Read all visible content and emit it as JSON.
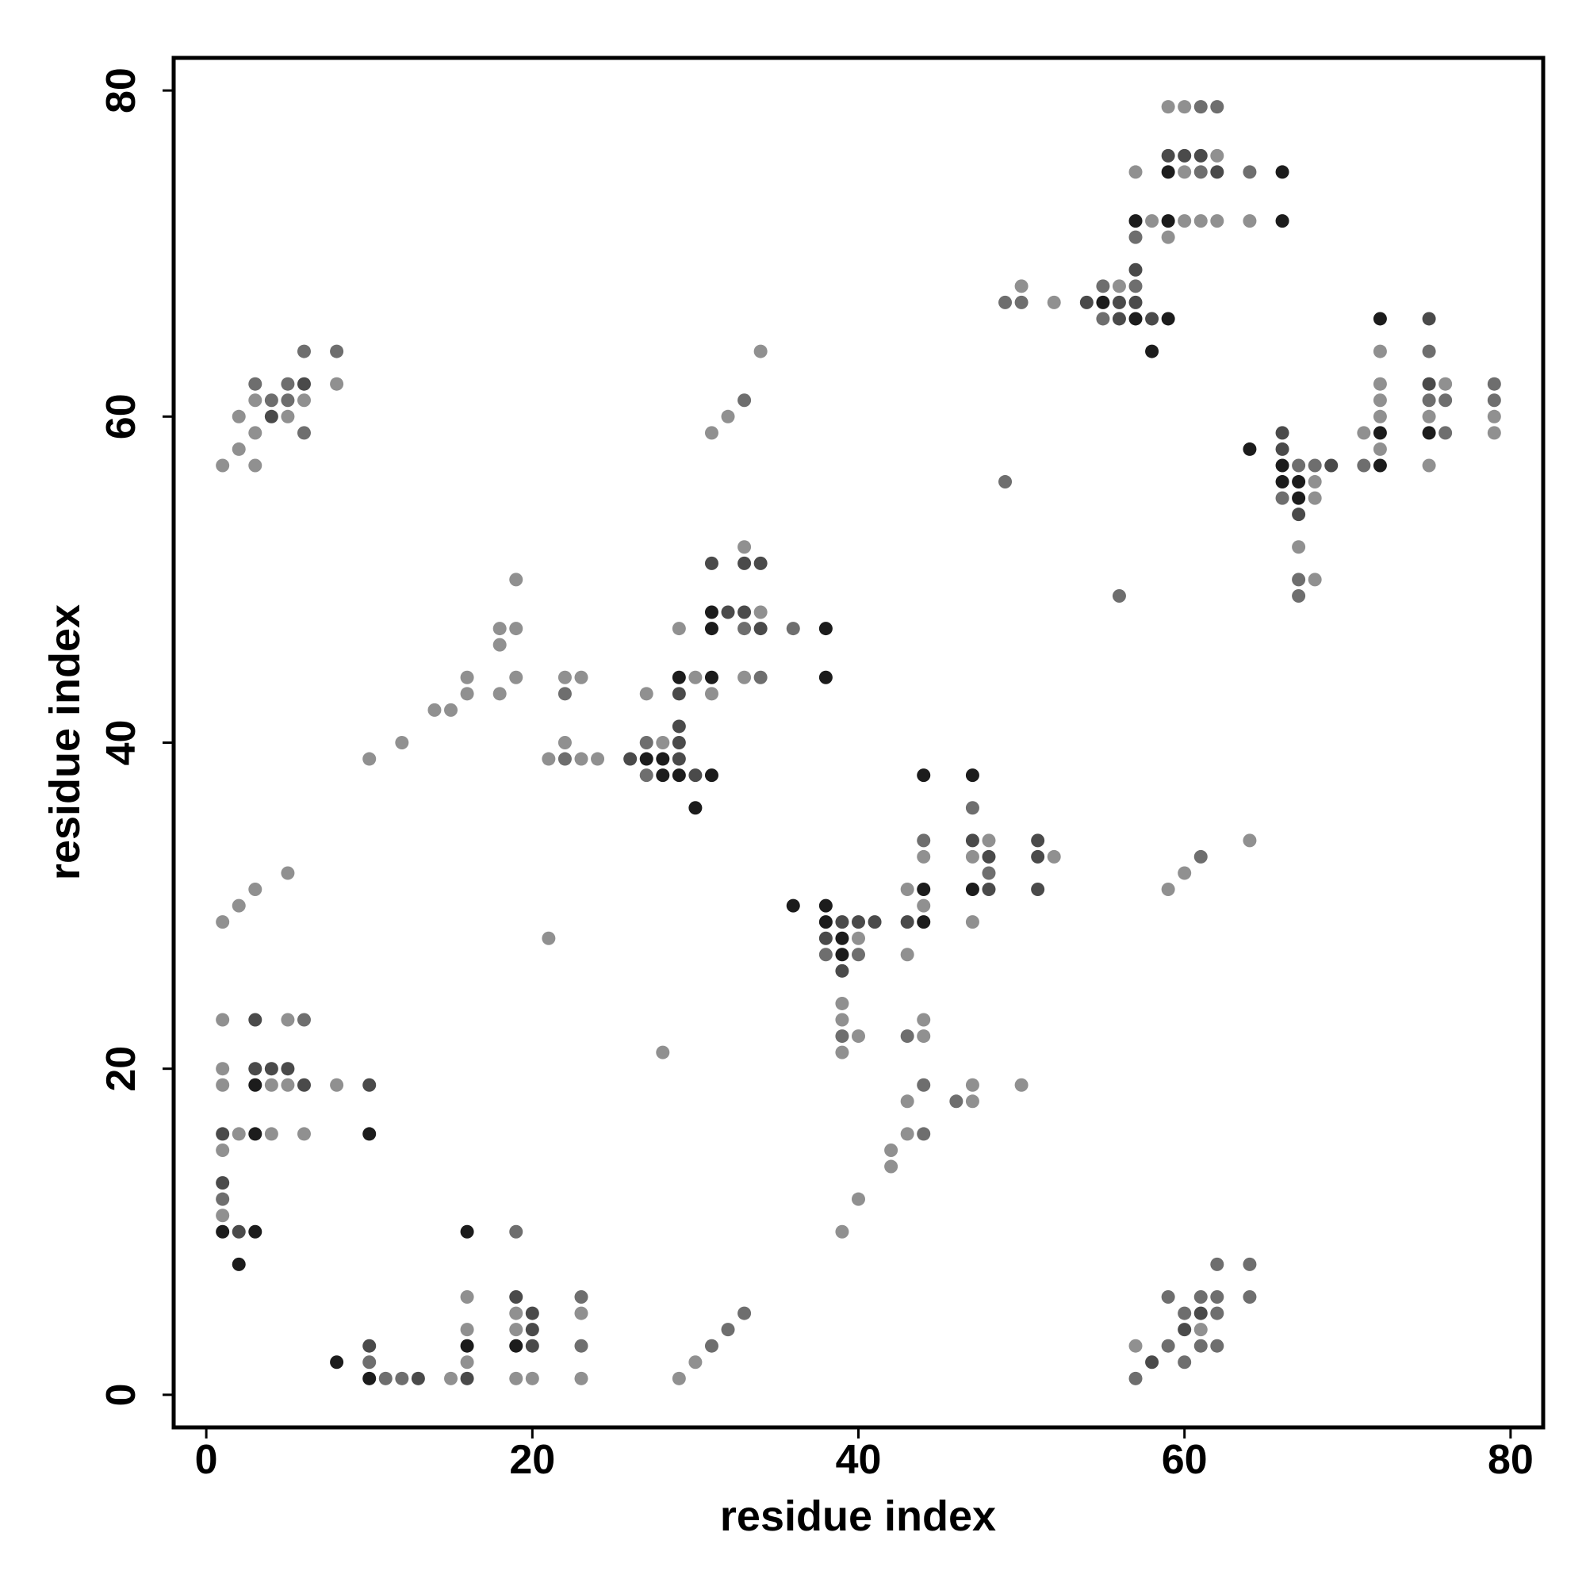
{
  "chart_data": {
    "type": "scatter",
    "x_label": "residue index",
    "y_label": "residue index",
    "xlim": [
      -2,
      82
    ],
    "ylim": [
      -2,
      82
    ],
    "xticks": [
      0,
      20,
      40,
      60,
      80
    ],
    "yticks": [
      0,
      20,
      40,
      60,
      80
    ],
    "series": [
      {
        "color": "#909090",
        "x": [
          59,
          60,
          62,
          57,
          60,
          58,
          60,
          61,
          62,
          64,
          59,
          50,
          56,
          52,
          34,
          8,
          72,
          76,
          3,
          6,
          72,
          2,
          5,
          32,
          72,
          75,
          79,
          3,
          31,
          71,
          79,
          2,
          72,
          1,
          3,
          75,
          68,
          68,
          33,
          67,
          19,
          68,
          34,
          18,
          19,
          29,
          18,
          16,
          19,
          22,
          23,
          30,
          33,
          16,
          18,
          27,
          31,
          14,
          15,
          12,
          22,
          28,
          10,
          21,
          23,
          24,
          48,
          64,
          44,
          47,
          52,
          5,
          60,
          3,
          43,
          59,
          2,
          44,
          1,
          47,
          21,
          40,
          43,
          39,
          1,
          5,
          39,
          44,
          40,
          44,
          28,
          39,
          1,
          1,
          4,
          5,
          8,
          47,
          50,
          43,
          47,
          2,
          4,
          6,
          43,
          1,
          42,
          42,
          40,
          1,
          39,
          16,
          19,
          23,
          16,
          19,
          61,
          57,
          16,
          30,
          15,
          19,
          20,
          23,
          29,
          72
        ],
        "y": [
          79,
          79,
          76,
          75,
          75,
          72,
          72,
          72,
          72,
          72,
          71,
          68,
          68,
          67,
          64,
          62,
          62,
          62,
          61,
          61,
          61,
          60,
          60,
          60,
          60,
          60,
          60,
          59,
          59,
          59,
          59,
          58,
          58,
          57,
          57,
          57,
          56,
          55,
          52,
          52,
          50,
          50,
          48,
          47,
          47,
          47,
          46,
          44,
          44,
          44,
          44,
          44,
          44,
          43,
          43,
          43,
          43,
          42,
          42,
          40,
          40,
          40,
          39,
          39,
          39,
          39,
          34,
          34,
          33,
          33,
          33,
          32,
          32,
          31,
          31,
          31,
          30,
          30,
          29,
          29,
          28,
          28,
          27,
          24,
          23,
          23,
          23,
          23,
          22,
          22,
          21,
          21,
          20,
          19,
          19,
          19,
          19,
          19,
          19,
          18,
          18,
          16,
          16,
          16,
          16,
          15,
          15,
          14,
          12,
          11,
          10,
          6,
          5,
          5,
          4,
          4,
          4,
          3,
          2,
          2,
          1,
          1,
          1,
          1,
          1,
          64
        ]
      },
      {
        "color": "#6e6e6e",
        "x": [
          61,
          62,
          61,
          64,
          57,
          55,
          57,
          49,
          50,
          55,
          6,
          8,
          3,
          5,
          79,
          4,
          5,
          33,
          75,
          76,
          79,
          6,
          76,
          67,
          68,
          71,
          49,
          66,
          67,
          56,
          67,
          33,
          36,
          34,
          22,
          27,
          22,
          27,
          44,
          61,
          48,
          38,
          40,
          6,
          39,
          43,
          44,
          46,
          44,
          1,
          19,
          62,
          64,
          23,
          59,
          61,
          62,
          64,
          33,
          60,
          62,
          32,
          23,
          31,
          59,
          61,
          62,
          10,
          60,
          11,
          12,
          57,
          75,
          47
        ],
        "y": [
          79,
          79,
          75,
          75,
          71,
          68,
          68,
          67,
          67,
          66,
          64,
          64,
          62,
          62,
          62,
          61,
          61,
          61,
          61,
          61,
          61,
          59,
          59,
          57,
          57,
          57,
          56,
          55,
          50,
          49,
          49,
          47,
          47,
          44,
          43,
          40,
          39,
          38,
          34,
          33,
          32,
          27,
          27,
          23,
          22,
          22,
          19,
          18,
          16,
          12,
          10,
          8,
          8,
          6,
          6,
          6,
          6,
          6,
          5,
          5,
          5,
          4,
          3,
          3,
          3,
          3,
          3,
          2,
          2,
          1,
          1,
          1,
          64,
          36
        ]
      },
      {
        "color": "#4a4a4a",
        "x": [
          59,
          60,
          61,
          62,
          57,
          54,
          56,
          57,
          56,
          58,
          6,
          75,
          4,
          69,
          66,
          67,
          31,
          33,
          34,
          32,
          33,
          34,
          29,
          29,
          29,
          26,
          29,
          30,
          47,
          51,
          48,
          51,
          48,
          51,
          39,
          40,
          41,
          43,
          38,
          39,
          3,
          3,
          4,
          5,
          6,
          10,
          1,
          1,
          2,
          19,
          20,
          61,
          20,
          60,
          10,
          20,
          58,
          13,
          16,
          75,
          66
        ],
        "y": [
          76,
          76,
          76,
          75,
          69,
          67,
          67,
          67,
          66,
          66,
          62,
          62,
          60,
          57,
          58,
          54,
          51,
          51,
          51,
          48,
          48,
          47,
          43,
          41,
          40,
          39,
          39,
          38,
          34,
          34,
          33,
          33,
          31,
          31,
          29,
          29,
          29,
          29,
          28,
          26,
          23,
          20,
          20,
          20,
          19,
          19,
          16,
          13,
          10,
          6,
          5,
          5,
          4,
          4,
          3,
          3,
          2,
          1,
          1,
          66,
          59
        ]
      },
      {
        "color": "#1c1c1c",
        "x": [
          59,
          66,
          57,
          59,
          66,
          55,
          57,
          59,
          58,
          72,
          72,
          75,
          64,
          66,
          72,
          66,
          67,
          67,
          31,
          31,
          38,
          29,
          31,
          38,
          27,
          28,
          28,
          29,
          31,
          30,
          44,
          47,
          44,
          47,
          36,
          38,
          38,
          44,
          39,
          39,
          3,
          3,
          10,
          1,
          3,
          16,
          2,
          16,
          19,
          8,
          10
        ],
        "y": [
          75,
          75,
          72,
          72,
          72,
          67,
          66,
          66,
          64,
          66,
          59,
          59,
          58,
          57,
          57,
          56,
          56,
          55,
          48,
          47,
          47,
          44,
          44,
          44,
          39,
          39,
          38,
          38,
          38,
          36,
          38,
          38,
          31,
          31,
          30,
          30,
          29,
          29,
          28,
          27,
          19,
          16,
          16,
          10,
          10,
          10,
          8,
          3,
          3,
          2,
          1
        ]
      }
    ]
  }
}
